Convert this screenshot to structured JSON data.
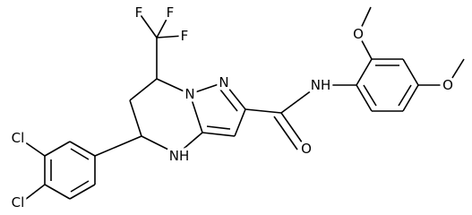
{
  "atoms": [
    {
      "label": "F"
    },
    {
      "label": "F"
    },
    {
      "label": "F"
    },
    {
      "label": "N"
    },
    {
      "label": "N"
    },
    {
      "label": "NH"
    },
    {
      "label": "Cl"
    },
    {
      "label": "Cl"
    },
    {
      "label": "O"
    },
    {
      "label": "NH"
    },
    {
      "label": "O"
    },
    {
      "label": "O"
    }
  ]
}
